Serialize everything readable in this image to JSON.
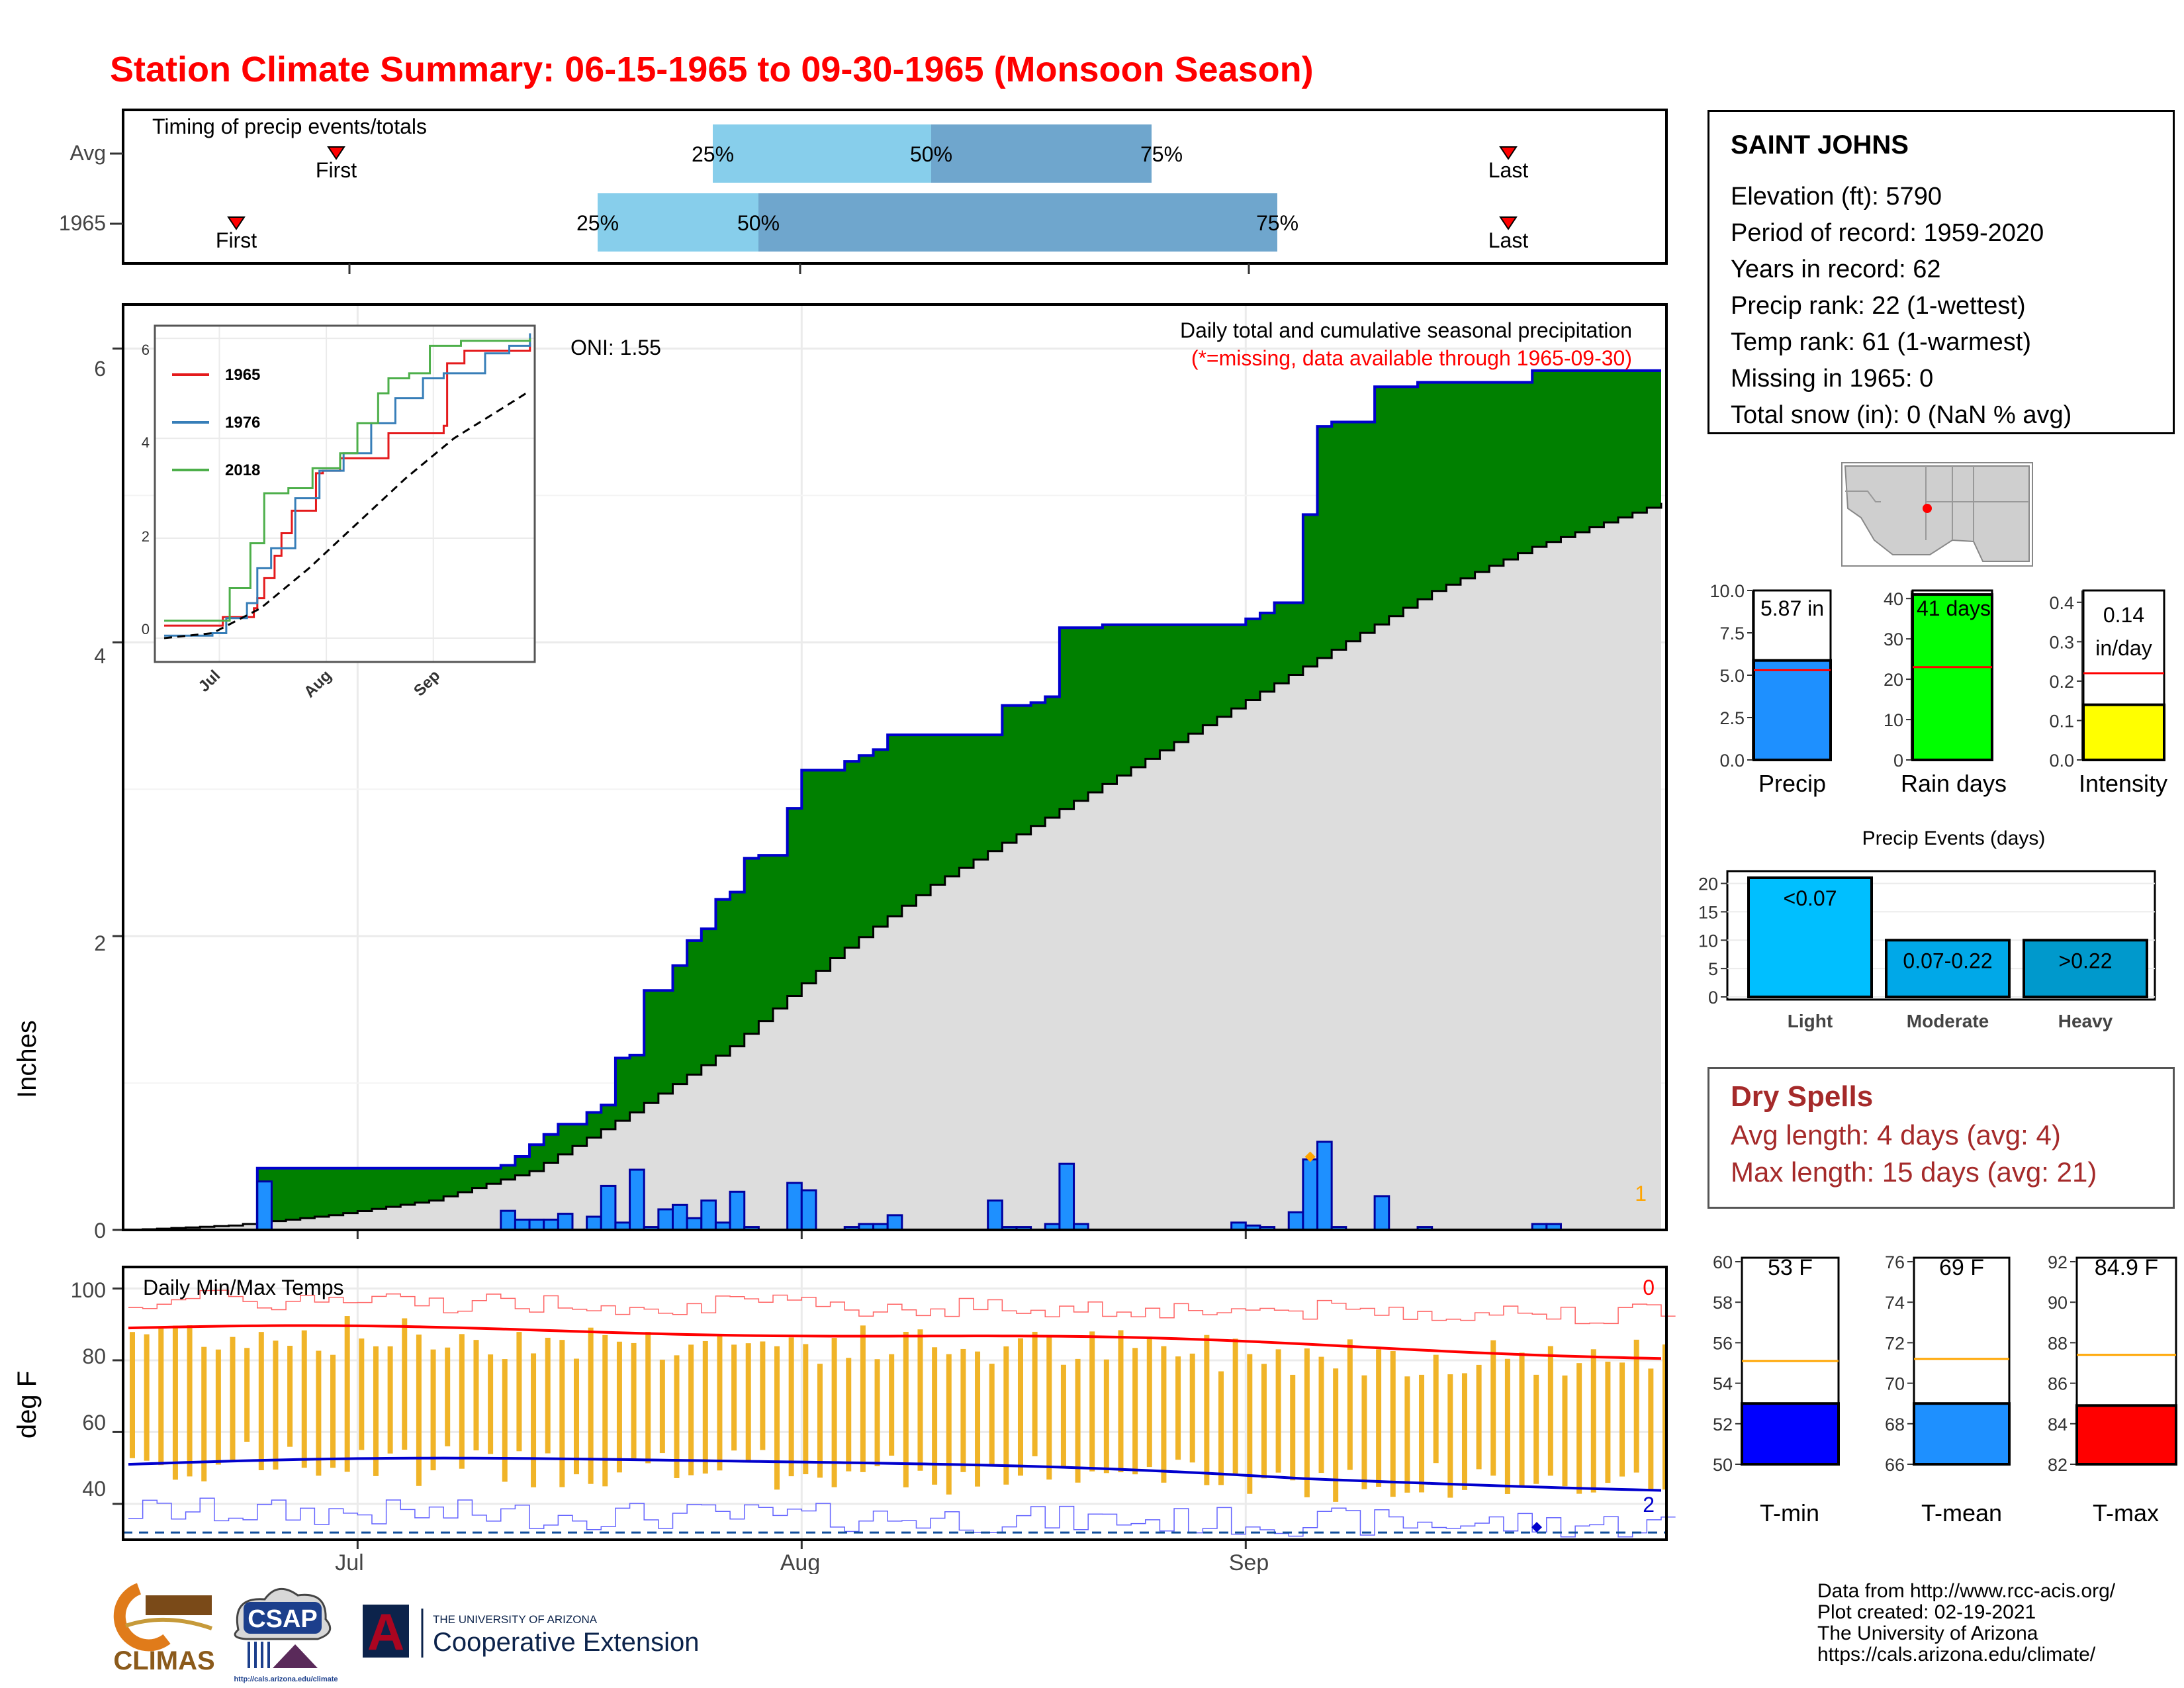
{
  "page": {
    "title": "Station Climate Summary: 06-15-1965 to 09-30-1965 (Monsoon Season)",
    "title_color": "#ff0000"
  },
  "timing": {
    "title": "Timing of precip events/totals",
    "rows": [
      {
        "label": "Avg",
        "first": "Jul 1",
        "last": "Sep 21",
        "p25": "Jul 25",
        "p50": "Aug 8",
        "p75": "Aug 23"
      },
      {
        "label": "1965",
        "first": "Jun 24",
        "last": "Sep 21",
        "p25": "Jul 17",
        "p50": "Jul 28",
        "p75": "Sep 1"
      }
    ],
    "labels": {
      "first": "First",
      "last": "Last",
      "p25": "25%",
      "p50": "50%",
      "p75": "75%"
    },
    "colors": {
      "light": "#87ceeb",
      "dark": "#6fa6cd",
      "marker": "#ff0000"
    }
  },
  "station": {
    "name": "SAINT JOHNS",
    "lines": [
      "Elevation (ft): 5790",
      "Period of record: 1959-2020",
      "Years in record: 62",
      "Precip rank: 22 (1-wettest)",
      "Temp rank: 61 (1-warmest)",
      "Missing in 1965: 0",
      "Total snow (in): 0 (NaN % avg)"
    ]
  },
  "precip_chart": {
    "ylabel": "Inches",
    "subtitle": "Daily total and cumulative seasonal precipitation",
    "note": "(*=missing, data available through 1965-09-30)",
    "oni": "ONI: 1.55",
    "corner_count": "1",
    "inset": {
      "series": [
        {
          "name": "1965",
          "color": "#e41a1c"
        },
        {
          "name": "1976",
          "color": "#377eb8"
        },
        {
          "name": "2018",
          "color": "#4daf4a"
        }
      ],
      "yticks": [
        "0",
        "2",
        "4",
        "6"
      ],
      "xticks": [
        "Jul",
        "Aug",
        "Sep"
      ]
    }
  },
  "temp_chart": {
    "title": "Daily Min/Max Temps",
    "ylabel": "deg F",
    "yticks": [
      "40",
      "60",
      "80",
      "100"
    ],
    "xticks": [
      "Jul",
      "Aug",
      "Sep"
    ],
    "count_max": "0",
    "count_min": "2"
  },
  "chart_data": [
    {
      "type": "area",
      "title": "Daily total and cumulative seasonal precipitation",
      "ylabel": "Inches",
      "ylim": [
        0,
        6.3
      ],
      "x_start": "1965-06-15",
      "x_end": "1965-09-30",
      "xticks": [
        "Jul",
        "Aug",
        "Sep"
      ],
      "yticks": [
        0,
        2,
        4,
        6
      ],
      "cumulative_1965_total": 5.87,
      "cumulative_1965_steps": [
        {
          "date": "1965-06-24",
          "value": 0.42
        },
        {
          "date": "1965-07-11",
          "value": 0.44
        },
        {
          "date": "1965-07-12",
          "value": 0.5
        },
        {
          "date": "1965-07-13",
          "value": 0.58
        },
        {
          "date": "1965-07-14",
          "value": 0.65
        },
        {
          "date": "1965-07-15",
          "value": 0.72
        },
        {
          "date": "1965-07-17",
          "value": 0.8
        },
        {
          "date": "1965-07-18",
          "value": 0.85
        },
        {
          "date": "1965-07-19",
          "value": 1.17
        },
        {
          "date": "1965-07-20",
          "value": 1.19
        },
        {
          "date": "1965-07-21",
          "value": 1.63
        },
        {
          "date": "1965-07-23",
          "value": 1.8
        },
        {
          "date": "1965-07-24",
          "value": 1.97
        },
        {
          "date": "1965-07-25",
          "value": 2.05
        },
        {
          "date": "1965-07-26",
          "value": 2.25
        },
        {
          "date": "1965-07-27",
          "value": 2.3
        },
        {
          "date": "1965-07-28",
          "value": 2.53
        },
        {
          "date": "1965-07-29",
          "value": 2.55
        },
        {
          "date": "1965-07-31",
          "value": 2.87
        },
        {
          "date": "1965-08-01",
          "value": 3.13
        },
        {
          "date": "1965-08-04",
          "value": 3.19
        },
        {
          "date": "1965-08-05",
          "value": 3.23
        },
        {
          "date": "1965-08-06",
          "value": 3.27
        },
        {
          "date": "1965-08-07",
          "value": 3.37
        },
        {
          "date": "1965-08-11",
          "value": 3.37
        },
        {
          "date": "1965-08-15",
          "value": 3.57
        },
        {
          "date": "1965-08-17",
          "value": 3.59
        },
        {
          "date": "1965-08-18",
          "value": 3.63
        },
        {
          "date": "1965-08-19",
          "value": 4.1
        },
        {
          "date": "1965-08-22",
          "value": 4.12
        },
        {
          "date": "1965-09-01",
          "value": 4.16
        },
        {
          "date": "1965-09-02",
          "value": 4.2
        },
        {
          "date": "1965-09-03",
          "value": 4.27
        },
        {
          "date": "1965-09-05",
          "value": 4.87
        },
        {
          "date": "1965-09-06",
          "value": 5.47
        },
        {
          "date": "1965-09-07",
          "value": 5.5
        },
        {
          "date": "1965-09-10",
          "value": 5.74
        },
        {
          "date": "1965-09-13",
          "value": 5.77
        },
        {
          "date": "1965-09-21",
          "value": 5.85
        }
      ],
      "cumulative_avg_points": [
        {
          "date": "1965-06-15",
          "value": 0.0
        },
        {
          "date": "1965-06-22",
          "value": 0.03
        },
        {
          "date": "1965-06-29",
          "value": 0.1
        },
        {
          "date": "1965-07-06",
          "value": 0.2
        },
        {
          "date": "1965-07-13",
          "value": 0.4
        },
        {
          "date": "1965-07-20",
          "value": 0.8
        },
        {
          "date": "1965-07-27",
          "value": 1.25
        },
        {
          "date": "1965-08-03",
          "value": 1.85
        },
        {
          "date": "1965-08-10",
          "value": 2.35
        },
        {
          "date": "1965-08-17",
          "value": 2.75
        },
        {
          "date": "1965-08-24",
          "value": 3.15
        },
        {
          "date": "1965-08-31",
          "value": 3.55
        },
        {
          "date": "1965-09-07",
          "value": 3.95
        },
        {
          "date": "1965-09-14",
          "value": 4.35
        },
        {
          "date": "1965-09-21",
          "value": 4.65
        },
        {
          "date": "1965-09-30",
          "value": 4.95
        }
      ],
      "daily_precip": [
        {
          "date": "1965-06-24",
          "value": 0.33
        },
        {
          "date": "1965-07-11",
          "value": 0.13
        },
        {
          "date": "1965-07-12",
          "value": 0.07
        },
        {
          "date": "1965-07-13",
          "value": 0.07
        },
        {
          "date": "1965-07-14",
          "value": 0.07
        },
        {
          "date": "1965-07-15",
          "value": 0.11
        },
        {
          "date": "1965-07-17",
          "value": 0.09
        },
        {
          "date": "1965-07-18",
          "value": 0.3
        },
        {
          "date": "1965-07-19",
          "value": 0.05
        },
        {
          "date": "1965-07-20",
          "value": 0.41
        },
        {
          "date": "1965-07-21",
          "value": 0.02
        },
        {
          "date": "1965-07-22",
          "value": 0.14
        },
        {
          "date": "1965-07-23",
          "value": 0.17
        },
        {
          "date": "1965-07-24",
          "value": 0.08
        },
        {
          "date": "1965-07-25",
          "value": 0.2
        },
        {
          "date": "1965-07-26",
          "value": 0.05
        },
        {
          "date": "1965-07-27",
          "value": 0.26
        },
        {
          "date": "1965-07-28",
          "value": 0.02
        },
        {
          "date": "1965-07-31",
          "value": 0.32
        },
        {
          "date": "1965-08-01",
          "value": 0.27
        },
        {
          "date": "1965-08-04",
          "value": 0.02
        },
        {
          "date": "1965-08-05",
          "value": 0.04
        },
        {
          "date": "1965-08-06",
          "value": 0.04
        },
        {
          "date": "1965-08-07",
          "value": 0.1
        },
        {
          "date": "1965-08-14",
          "value": 0.2
        },
        {
          "date": "1965-08-15",
          "value": 0.02
        },
        {
          "date": "1965-08-16",
          "value": 0.02
        },
        {
          "date": "1965-08-18",
          "value": 0.04
        },
        {
          "date": "1965-08-19",
          "value": 0.45
        },
        {
          "date": "1965-08-20",
          "value": 0.04
        },
        {
          "date": "1965-08-31",
          "value": 0.05
        },
        {
          "date": "1965-09-01",
          "value": 0.03
        },
        {
          "date": "1965-09-02",
          "value": 0.02
        },
        {
          "date": "1965-09-04",
          "value": 0.12
        },
        {
          "date": "1965-09-05",
          "value": 0.48
        },
        {
          "date": "1965-09-06",
          "value": 0.6
        },
        {
          "date": "1965-09-07",
          "value": 0.02
        },
        {
          "date": "1965-09-10",
          "value": 0.23
        },
        {
          "date": "1965-09-13",
          "value": 0.02
        },
        {
          "date": "1965-09-21",
          "value": 0.04
        },
        {
          "date": "1965-09-22",
          "value": 0.04
        }
      ],
      "colors": {
        "above_avg_fill": "#008000",
        "avg_fill": "#dddddd",
        "line": "#0000cd",
        "bars": "#1e90ff"
      }
    },
    {
      "type": "line",
      "title": "Inset cumulative precip comparison",
      "ylim": [
        0,
        6.2
      ],
      "series": [
        {
          "name": "1965",
          "points": [
            [
              0,
              0.25
            ],
            [
              9,
              0.25
            ],
            [
              17,
              0.42
            ],
            [
              26,
              0.6
            ],
            [
              27,
              0.8
            ],
            [
              29,
              1.2
            ],
            [
              32,
              1.65
            ],
            [
              34,
              2.1
            ],
            [
              37,
              2.55
            ],
            [
              44,
              3.3
            ],
            [
              46,
              3.35
            ],
            [
              51,
              3.6
            ],
            [
              59,
              3.6
            ],
            [
              65,
              4.1
            ],
            [
              81,
              4.25
            ],
            [
              82,
              5.5
            ],
            [
              87,
              5.75
            ],
            [
              106,
              5.9
            ]
          ]
        },
        {
          "name": "1976",
          "points": [
            [
              0,
              0.05
            ],
            [
              14,
              0.1
            ],
            [
              18,
              0.4
            ],
            [
              24,
              0.7
            ],
            [
              27,
              1.4
            ],
            [
              31,
              1.8
            ],
            [
              38,
              2.8
            ],
            [
              45,
              3.35
            ],
            [
              52,
              3.7
            ],
            [
              60,
              4.3
            ],
            [
              67,
              4.8
            ],
            [
              75,
              5.2
            ],
            [
              81,
              5.3
            ],
            [
              93,
              5.7
            ],
            [
              100,
              5.85
            ],
            [
              106,
              6.1
            ]
          ]
        },
        {
          "name": "2018",
          "points": [
            [
              0,
              0.35
            ],
            [
              15,
              0.35
            ],
            [
              19,
              1.0
            ],
            [
              25,
              1.9
            ],
            [
              29,
              2.9
            ],
            [
              36,
              3.0
            ],
            [
              43,
              3.4
            ],
            [
              51,
              3.7
            ],
            [
              56,
              4.3
            ],
            [
              62,
              4.9
            ],
            [
              65,
              5.2
            ],
            [
              71,
              5.3
            ],
            [
              77,
              5.85
            ],
            [
              86,
              5.95
            ],
            [
              106,
              6.0
            ]
          ]
        },
        {
          "name": "Avg",
          "points": [
            [
              0,
              0
            ],
            [
              14,
              0.1
            ],
            [
              28,
              0.6
            ],
            [
              42,
              1.4
            ],
            [
              56,
              2.3
            ],
            [
              70,
              3.2
            ],
            [
              84,
              4.0
            ],
            [
              98,
              4.6
            ],
            [
              106,
              4.95
            ]
          ]
        }
      ]
    },
    {
      "type": "line",
      "title": "Daily Min/Max Temps",
      "ylabel": "deg F",
      "ylim": [
        30,
        106
      ],
      "x_start": "1965-06-15",
      "x_end": "1965-09-30",
      "avg_max_start": 89,
      "avg_max_end": 81,
      "avg_min_start": 51,
      "avg_min_end": 44,
      "record_max_approx": 97,
      "record_min_approx": 38,
      "freeze_line": 32
    },
    {
      "type": "bar",
      "title": "Seasonal totals",
      "categories": [
        "Precip",
        "Rain days",
        "Intensity"
      ],
      "values": [
        5.87,
        41,
        0.14
      ],
      "labels": [
        "5.87 in",
        "41 days",
        "0.14 in/day"
      ],
      "averages": [
        5.3,
        23,
        0.22
      ],
      "ylims": [
        [
          0,
          10
        ],
        [
          0,
          42
        ],
        [
          0,
          0.43
        ]
      ],
      "yticks": [
        [
          "0.0",
          "2.5",
          "5.0",
          "7.5",
          "10.0"
        ],
        [
          "0",
          "10",
          "20",
          "30",
          "40"
        ],
        [
          "0.0",
          "0.1",
          "0.2",
          "0.3",
          "0.4"
        ]
      ],
      "colors": [
        "#1e90ff",
        "#00ff00",
        "#ffff00"
      ]
    },
    {
      "type": "bar",
      "title": "Precip Events (days)",
      "categories": [
        "Light",
        "Moderate",
        "Heavy"
      ],
      "bar_labels": [
        "<0.07",
        "0.07-0.22",
        ">0.22"
      ],
      "values": [
        21,
        10,
        10
      ],
      "ylim": [
        0,
        21
      ],
      "yticks": [
        "0",
        "5",
        "10",
        "15",
        "20"
      ],
      "colors": [
        "#00bfff",
        "#00a8e8",
        "#0099cc"
      ]
    },
    {
      "type": "bar",
      "title": "Seasonal temperature",
      "categories": [
        "T-min",
        "T-mean",
        "T-max"
      ],
      "values": [
        53,
        69,
        84.9
      ],
      "labels": [
        "53 F",
        "69 F",
        "84.9 F"
      ],
      "averages": [
        55.1,
        71.2,
        87.4
      ],
      "ylims": [
        [
          50,
          60
        ],
        [
          66,
          76
        ],
        [
          82,
          92
        ]
      ],
      "yticks": [
        [
          "50",
          "52",
          "54",
          "56",
          "58",
          "60"
        ],
        [
          "66",
          "68",
          "70",
          "72",
          "74",
          "76"
        ],
        [
          "82",
          "84",
          "86",
          "88",
          "90",
          "92"
        ]
      ],
      "colors": [
        "#0000ff",
        "#1e90ff",
        "#ff0000"
      ]
    }
  ],
  "dry_spells": {
    "title": "Dry Spells",
    "avg_line": "Avg length: 4 days (avg: 4)",
    "max_line": "Max length: 15 days (avg: 21)",
    "color": "#a52a2a"
  },
  "footer": {
    "lines": [
      "Data from http://www.rcc-acis.org/",
      "Plot created: 02-19-2021",
      "The University of Arizona",
      "https://cals.arizona.edu/climate/"
    ],
    "logos": {
      "climas": "CLIMAS",
      "csap": "CSAP",
      "csap_url": "http://cals.arizona.edu/climate",
      "ua_small": "THE UNIVERSITY OF ARIZONA",
      "ua_big": "Cooperative Extension",
      "ua_letter": "A"
    }
  }
}
